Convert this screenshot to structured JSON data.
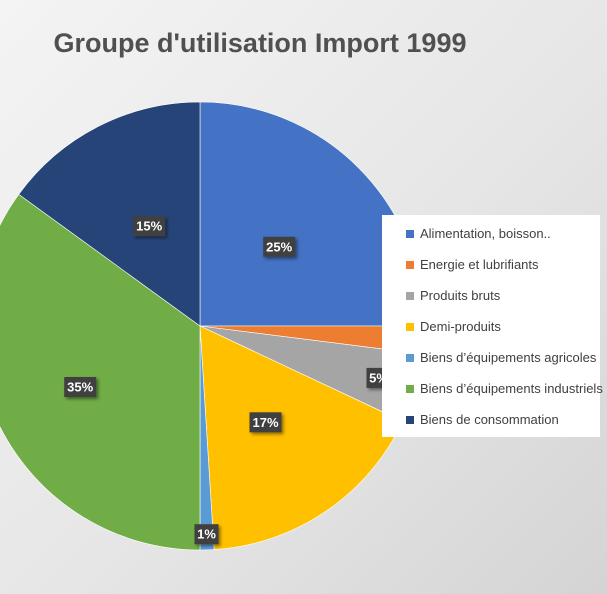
{
  "chart_data": {
    "type": "pie",
    "title": "Groupe d'utilisation Import 1999",
    "categories": [
      "Alimentation, boisson..",
      "Energie et lubrifiants",
      "Produits bruts",
      "Demi-produits",
      "Biens d’équipements agricoles",
      "Biens d’équipements industriels",
      "Biens de consommation"
    ],
    "values": [
      25,
      2,
      5,
      17,
      1,
      35,
      15
    ],
    "value_labels": [
      "25%",
      "2%",
      "5%",
      "17%",
      "1%",
      "35%",
      "15%"
    ],
    "colors": [
      "#4472C4",
      "#ED7D31",
      "#A5A5A5",
      "#FFC000",
      "#5B9BD5",
      "#70AD47",
      "#264478"
    ],
    "legend_position": "right",
    "start_angle": "12 o'clock, clockwise"
  }
}
